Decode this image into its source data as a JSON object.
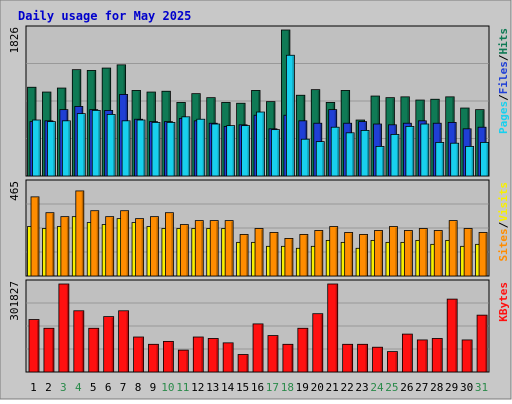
{
  "title": "Daily usage for May 2025",
  "colors": {
    "background": "#c8c8c8",
    "plot_bg": "#c0c0c0",
    "hits": "#0f7a55",
    "files": "#1f3fd6",
    "pages": "#18d0ee",
    "visits": "#f8f000",
    "sites": "#ff8c00",
    "kbytes": "#ff1010",
    "weekend": "#2a8a4a",
    "weekday": "#000000",
    "title_color": "#0000cc"
  },
  "chart_data": [
    {
      "type": "bar",
      "name": "hits-files-pages",
      "ymax_label": "1826",
      "ymax": 1826,
      "legend": [
        "Pages",
        "Files",
        "Hits"
      ],
      "legend_sep": "/",
      "categories": [
        "1",
        "2",
        "3",
        "4",
        "5",
        "6",
        "7",
        "8",
        "9",
        "10",
        "11",
        "12",
        "13",
        "14",
        "15",
        "16",
        "17",
        "18",
        "19",
        "20",
        "21",
        "22",
        "23",
        "24",
        "25",
        "26",
        "27",
        "28",
        "29",
        "30",
        "31"
      ],
      "weekend_days": [
        3,
        4,
        10,
        11,
        17,
        18,
        24,
        25,
        31
      ],
      "series": [
        {
          "name": "Hits",
          "values": [
            1110,
            1050,
            1100,
            1330,
            1320,
            1350,
            1390,
            1070,
            1050,
            1060,
            920,
            1030,
            980,
            920,
            910,
            1070,
            930,
            1826,
            1010,
            1080,
            920,
            1070,
            700,
            1000,
            980,
            990,
            950,
            960,
            990,
            850,
            830
          ]
        },
        {
          "name": "Files",
          "values": [
            680,
            690,
            830,
            870,
            830,
            820,
            1020,
            710,
            680,
            680,
            720,
            690,
            660,
            620,
            640,
            760,
            590,
            760,
            690,
            660,
            830,
            660,
            680,
            650,
            640,
            660,
            690,
            660,
            670,
            590,
            610
          ]
        },
        {
          "name": "Pages",
          "values": [
            700,
            680,
            690,
            780,
            820,
            770,
            690,
            700,
            670,
            670,
            740,
            710,
            650,
            630,
            630,
            800,
            580,
            1510,
            460,
            430,
            610,
            540,
            570,
            370,
            520,
            620,
            650,
            420,
            410,
            370,
            420
          ]
        }
      ]
    },
    {
      "type": "bar",
      "name": "visits-sites",
      "ymax_label": "465",
      "ymax": 465,
      "legend": [
        "Sites",
        "Visits"
      ],
      "legend_sep": "/",
      "categories": [
        "1",
        "2",
        "3",
        "4",
        "5",
        "6",
        "7",
        "8",
        "9",
        "10",
        "11",
        "12",
        "13",
        "14",
        "15",
        "16",
        "17",
        "18",
        "19",
        "20",
        "21",
        "22",
        "23",
        "24",
        "25",
        "26",
        "27",
        "28",
        "29",
        "30",
        "31"
      ],
      "series": [
        {
          "name": "Visits",
          "values": [
            250,
            240,
            250,
            300,
            270,
            260,
            290,
            270,
            250,
            240,
            240,
            240,
            240,
            240,
            170,
            170,
            150,
            150,
            140,
            150,
            180,
            170,
            140,
            180,
            170,
            170,
            180,
            160,
            180,
            150,
            160
          ]
        },
        {
          "name": "Sites",
          "values": [
            400,
            320,
            300,
            430,
            330,
            300,
            330,
            290,
            300,
            320,
            260,
            280,
            280,
            280,
            210,
            240,
            220,
            190,
            210,
            230,
            250,
            220,
            210,
            230,
            250,
            230,
            240,
            230,
            280,
            240,
            220
          ]
        }
      ]
    },
    {
      "type": "bar",
      "name": "kbytes",
      "ymax_label": "301827",
      "ymax": 301827,
      "legend": [
        "KBytes"
      ],
      "categories": [
        "1",
        "2",
        "3",
        "4",
        "5",
        "6",
        "7",
        "8",
        "9",
        "10",
        "11",
        "12",
        "13",
        "14",
        "15",
        "16",
        "17",
        "18",
        "19",
        "20",
        "21",
        "22",
        "23",
        "24",
        "25",
        "26",
        "27",
        "28",
        "29",
        "30",
        "31"
      ],
      "series": [
        {
          "name": "KBytes",
          "values": [
            180000,
            150000,
            301827,
            210000,
            150000,
            190000,
            210000,
            120000,
            95000,
            105000,
            75000,
            120000,
            115000,
            100000,
            60000,
            165000,
            125000,
            95000,
            150000,
            200000,
            301827,
            95000,
            95000,
            85000,
            70000,
            130000,
            110000,
            115000,
            250000,
            110000,
            195000
          ]
        }
      ]
    }
  ]
}
